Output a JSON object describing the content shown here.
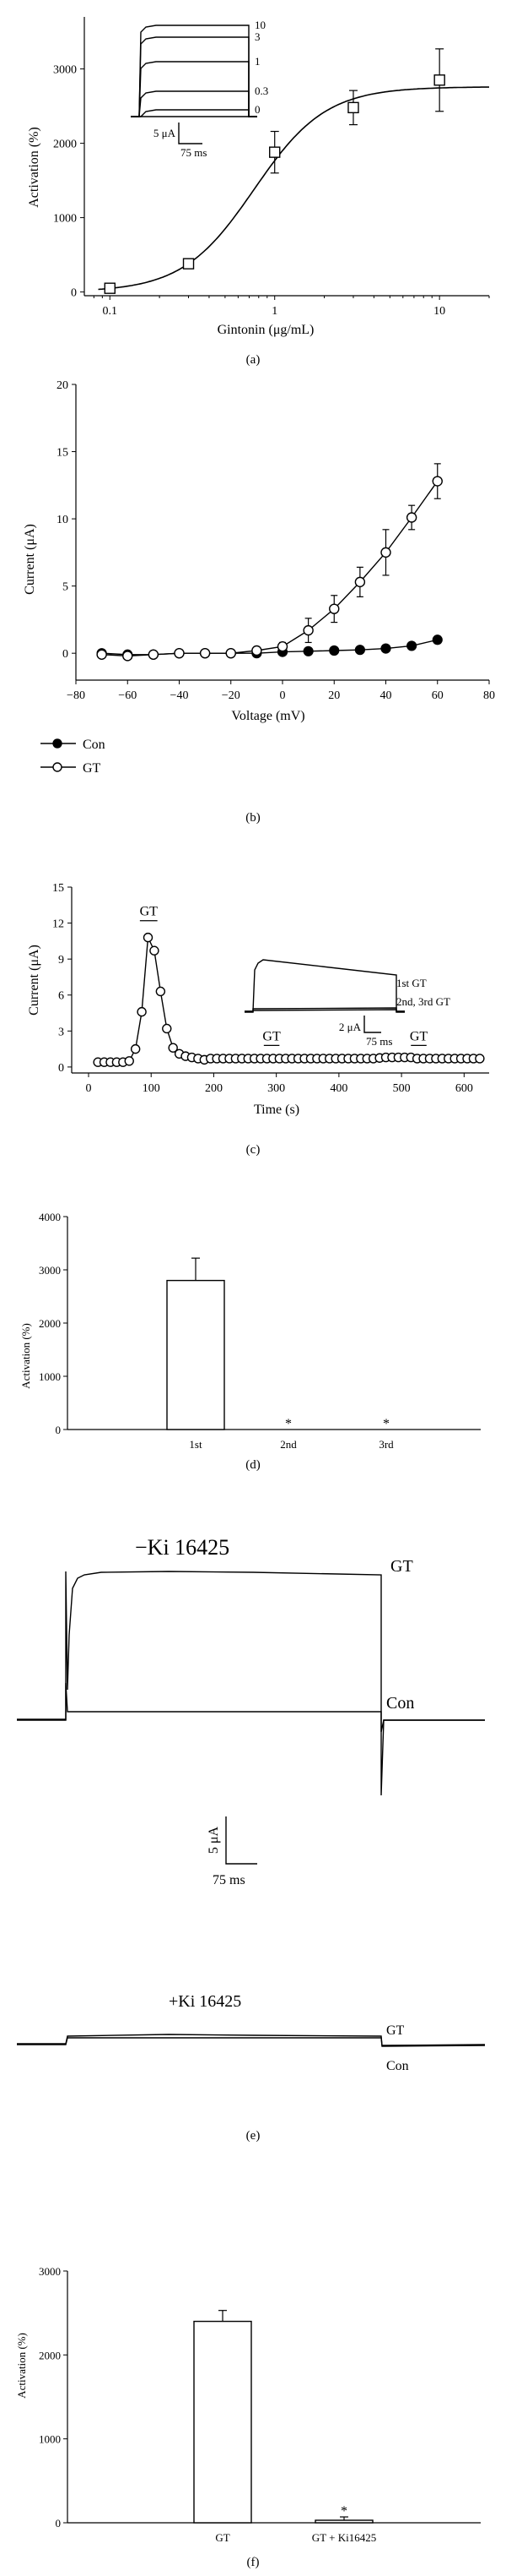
{
  "chart_data": [
    {
      "panel": "(a)",
      "type": "scatter",
      "xlabel": "Gintonin (μg/mL)",
      "ylabel": "Activation (%)",
      "xscale": "log",
      "xlim": [
        0.07,
        20
      ],
      "ylim": [
        -50,
        3700
      ],
      "xticks": [
        0.1,
        1,
        10
      ],
      "xticklabels": [
        "0.1",
        "1",
        "10"
      ],
      "yticks": [
        0,
        1000,
        2000,
        3000
      ],
      "yticklabels": [
        "0",
        "1000",
        "2000",
        "3000"
      ],
      "points": [
        {
          "x": 0.1,
          "y": 50,
          "err": 30
        },
        {
          "x": 0.3,
          "y": 380,
          "err": 60
        },
        {
          "x": 1,
          "y": 1880,
          "err": 280
        },
        {
          "x": 3,
          "y": 2480,
          "err": 230
        },
        {
          "x": 10,
          "y": 2850,
          "err": 420
        }
      ],
      "fit": {
        "bottom": 0,
        "top": 2760,
        "ec50": 0.75,
        "hill": 2.0
      },
      "inset": {
        "trace_labels": [
          "10",
          "3",
          "1",
          "0.3",
          "0"
        ],
        "scale_current": "5 μA",
        "scale_time": "75 ms"
      }
    },
    {
      "panel": "(b)",
      "type": "line",
      "xlabel": "Voltage (mV)",
      "ylabel": "Current (μA)",
      "xlim": [
        -80,
        80
      ],
      "ylim": [
        -2,
        20
      ],
      "xticks": [
        -80,
        -60,
        -40,
        -20,
        0,
        20,
        40,
        60,
        80
      ],
      "xticklabels": [
        "−80",
        "−60",
        "−40",
        "−20",
        "0",
        "20",
        "40",
        "60",
        "80"
      ],
      "yticks": [
        0,
        5,
        10,
        15,
        20
      ],
      "yticklabels": [
        "0",
        "5",
        "10",
        "15",
        "20"
      ],
      "series": [
        {
          "name": "Con",
          "marker": "filled",
          "x": [
            -70,
            -60,
            -50,
            -40,
            -30,
            -20,
            -10,
            0,
            10,
            20,
            30,
            40,
            50,
            60
          ],
          "y": [
            0,
            -0.1,
            -0.1,
            0,
            0,
            0,
            0,
            0.1,
            0.15,
            0.2,
            0.25,
            0.35,
            0.55,
            1.0
          ],
          "err": [
            0,
            0,
            0,
            0,
            0,
            0,
            0,
            0,
            0,
            0,
            0,
            0,
            0.1,
            0.15
          ]
        },
        {
          "name": "GT",
          "marker": "open",
          "x": [
            -70,
            -60,
            -50,
            -40,
            -30,
            -20,
            -10,
            0,
            10,
            20,
            30,
            40,
            50,
            60
          ],
          "y": [
            -0.1,
            -0.2,
            -0.1,
            0,
            0,
            0,
            0.2,
            0.5,
            1.7,
            3.3,
            5.3,
            7.5,
            10.1,
            12.8
          ],
          "err": [
            0,
            0,
            0,
            0,
            0,
            0,
            0.2,
            0.3,
            0.9,
            1.0,
            1.1,
            1.7,
            0.9,
            1.3
          ]
        }
      ]
    },
    {
      "panel": "(c)",
      "type": "line",
      "xlabel": "Time (s)",
      "ylabel": "Current (μA)",
      "xlim": [
        0,
        640
      ],
      "ylim": [
        -0.5,
        15
      ],
      "xticks": [
        0,
        100,
        200,
        300,
        400,
        500,
        600
      ],
      "xticklabels": [
        "0",
        "100",
        "200",
        "300",
        "400",
        "500",
        "600"
      ],
      "yticks": [
        0,
        3,
        6,
        9,
        12,
        15
      ],
      "yticklabels": [
        "0",
        "3",
        "6",
        "9",
        "12",
        "15"
      ],
      "series": [
        {
          "name": "GT",
          "x": [
            15,
            25,
            35,
            45,
            55,
            65,
            75,
            85,
            95,
            105,
            115,
            125,
            135,
            145,
            155,
            165,
            175,
            185,
            195,
            205,
            215,
            225,
            235,
            245,
            255,
            265,
            275,
            285,
            295,
            305,
            315,
            325,
            335,
            345,
            355,
            365,
            375,
            385,
            395,
            405,
            415,
            425,
            435,
            445,
            455,
            465,
            475,
            485,
            495,
            505,
            515,
            525,
            535,
            545,
            555,
            565,
            575,
            585,
            595,
            605,
            615,
            625
          ],
          "y": [
            0.4,
            0.4,
            0.4,
            0.4,
            0.4,
            0.5,
            1.5,
            4.6,
            10.8,
            9.7,
            6.3,
            3.2,
            1.6,
            1.1,
            0.9,
            0.8,
            0.7,
            0.6,
            0.7,
            0.7,
            0.7,
            0.7,
            0.7,
            0.7,
            0.7,
            0.7,
            0.7,
            0.7,
            0.7,
            0.7,
            0.7,
            0.7,
            0.7,
            0.7,
            0.7,
            0.7,
            0.7,
            0.7,
            0.7,
            0.7,
            0.7,
            0.7,
            0.7,
            0.7,
            0.7,
            0.75,
            0.8,
            0.8,
            0.8,
            0.8,
            0.8,
            0.7,
            0.7,
            0.7,
            0.7,
            0.7,
            0.7,
            0.7,
            0.7,
            0.7,
            0.7,
            0.7
          ]
        }
      ],
      "applications": [
        {
          "label": "GT",
          "start": 82,
          "end": 110
        },
        {
          "label": "GT",
          "start": 280,
          "end": 305
        },
        {
          "label": "GT",
          "start": 515,
          "end": 540
        }
      ],
      "inset": {
        "trace_labels": [
          "1st GT",
          "2nd, 3rd GT"
        ],
        "scale_current": "2 μA",
        "scale_time": "75 ms"
      }
    },
    {
      "panel": "(d)",
      "type": "bar",
      "ylabel": "Activation (%)",
      "ylim": [
        0,
        4000
      ],
      "yticks": [
        0,
        1000,
        2000,
        3000,
        4000
      ],
      "yticklabels": [
        "0",
        "1000",
        "2000",
        "3000",
        "4000"
      ],
      "categories": [
        "1st",
        "2nd",
        "3rd"
      ],
      "values": [
        2800,
        0,
        0
      ],
      "errors": [
        420,
        0,
        0
      ],
      "annotations": [
        "",
        "*",
        "*"
      ]
    },
    {
      "panel": "(e)",
      "type": "traces",
      "groups": [
        {
          "title": "−Ki 16425",
          "trace_labels": [
            "GT",
            "Con"
          ]
        },
        {
          "title": "+Ki 16425",
          "trace_labels": [
            "GT",
            "Con"
          ]
        }
      ],
      "scale_current": "5 μA",
      "scale_time": "75 ms"
    },
    {
      "panel": "(f)",
      "type": "bar",
      "ylabel": "Activation (%)",
      "ylim": [
        0,
        3000
      ],
      "yticks": [
        0,
        1000,
        2000,
        3000
      ],
      "yticklabels": [
        "0",
        "1000",
        "2000",
        "3000"
      ],
      "categories": [
        "GT",
        "GT + Ki16425"
      ],
      "values": [
        2400,
        30
      ],
      "errors": [
        130,
        40
      ],
      "annotations": [
        "",
        "*"
      ]
    }
  ]
}
